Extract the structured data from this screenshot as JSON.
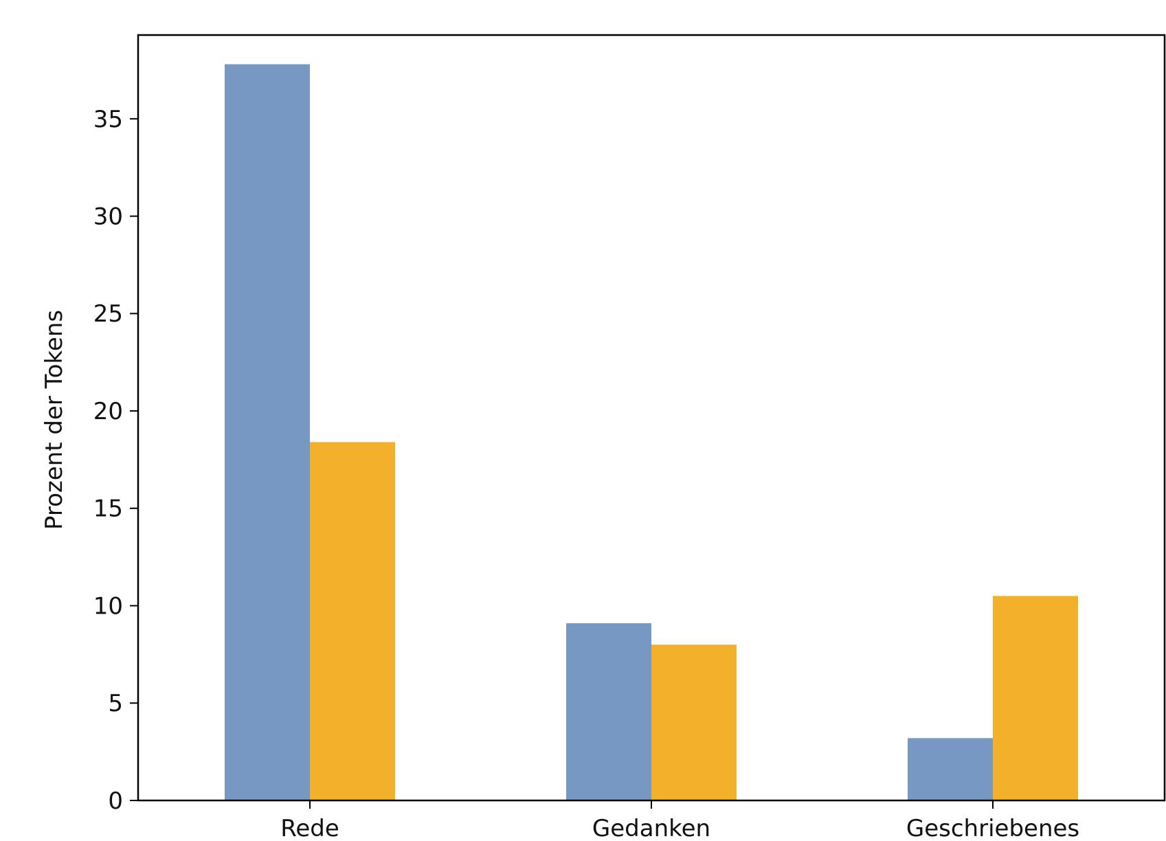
{
  "chart_data": {
    "type": "bar",
    "categories": [
      "Rede",
      "Gedanken",
      "Geschriebenes"
    ],
    "series": [
      {
        "values": [
          37.8,
          9.1,
          3.2
        ],
        "color": "#7698c3"
      },
      {
        "values": [
          18.4,
          8.0,
          10.5
        ],
        "color": "#f3b02a"
      }
    ],
    "xlabel": "",
    "ylabel": "Prozent der Tokens",
    "ylim": [
      0,
      39.3
    ],
    "yticks": [
      0,
      5,
      10,
      15,
      20,
      25,
      30,
      35
    ],
    "grid": false,
    "legend": "none"
  }
}
